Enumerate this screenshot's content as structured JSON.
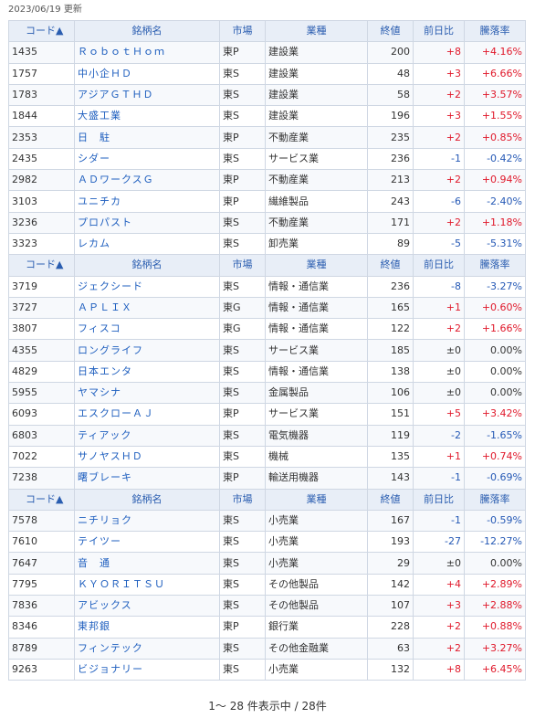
{
  "updated": "2023/06/19 更新",
  "headers": {
    "code": "コード▲",
    "name": "銘柄名",
    "market": "市場",
    "industry": "業種",
    "close": "終値",
    "change": "前日比",
    "pct": "騰落率"
  },
  "groups": [
    [
      {
        "code": "1435",
        "name": "ＲｏｂｏｔＨｏｍ",
        "market": "東P",
        "industry": "建設業",
        "close": "200",
        "change": "+8",
        "pct": "+4.16%",
        "dir": "up"
      },
      {
        "code": "1757",
        "name": "中小企ＨＤ",
        "market": "東S",
        "industry": "建設業",
        "close": "48",
        "change": "+3",
        "pct": "+6.66%",
        "dir": "up"
      },
      {
        "code": "1783",
        "name": "アジアＧＴＨＤ",
        "market": "東S",
        "industry": "建設業",
        "close": "58",
        "change": "+2",
        "pct": "+3.57%",
        "dir": "up"
      },
      {
        "code": "1844",
        "name": "大盛工業",
        "market": "東S",
        "industry": "建設業",
        "close": "196",
        "change": "+3",
        "pct": "+1.55%",
        "dir": "up"
      },
      {
        "code": "2353",
        "name": "日　駐",
        "market": "東P",
        "industry": "不動産業",
        "close": "235",
        "change": "+2",
        "pct": "+0.85%",
        "dir": "up"
      },
      {
        "code": "2435",
        "name": "シダー",
        "market": "東S",
        "industry": "サービス業",
        "close": "236",
        "change": "-1",
        "pct": "-0.42%",
        "dir": "down"
      },
      {
        "code": "2982",
        "name": "ＡＤワークスＧ",
        "market": "東P",
        "industry": "不動産業",
        "close": "213",
        "change": "+2",
        "pct": "+0.94%",
        "dir": "up"
      },
      {
        "code": "3103",
        "name": "ユニチカ",
        "market": "東P",
        "industry": "繊維製品",
        "close": "243",
        "change": "-6",
        "pct": "-2.40%",
        "dir": "down"
      },
      {
        "code": "3236",
        "name": "プロパスト",
        "market": "東S",
        "industry": "不動産業",
        "close": "171",
        "change": "+2",
        "pct": "+1.18%",
        "dir": "up"
      },
      {
        "code": "3323",
        "name": "レカム",
        "market": "東S",
        "industry": "卸売業",
        "close": "89",
        "change": "-5",
        "pct": "-5.31%",
        "dir": "down"
      }
    ],
    [
      {
        "code": "3719",
        "name": "ジェクシード",
        "market": "東S",
        "industry": "情報・通信業",
        "close": "236",
        "change": "-8",
        "pct": "-3.27%",
        "dir": "down"
      },
      {
        "code": "3727",
        "name": "ＡＰＬＩＸ",
        "market": "東G",
        "industry": "情報・通信業",
        "close": "165",
        "change": "+1",
        "pct": "+0.60%",
        "dir": "up"
      },
      {
        "code": "3807",
        "name": "フィスコ",
        "market": "東G",
        "industry": "情報・通信業",
        "close": "122",
        "change": "+2",
        "pct": "+1.66%",
        "dir": "up"
      },
      {
        "code": "4355",
        "name": "ロングライフ",
        "market": "東S",
        "industry": "サービス業",
        "close": "185",
        "change": "±0",
        "pct": "0.00%",
        "dir": "flat"
      },
      {
        "code": "4829",
        "name": "日本エンタ",
        "market": "東S",
        "industry": "情報・通信業",
        "close": "138",
        "change": "±0",
        "pct": "0.00%",
        "dir": "flat"
      },
      {
        "code": "5955",
        "name": "ヤマシナ",
        "market": "東S",
        "industry": "金属製品",
        "close": "106",
        "change": "±0",
        "pct": "0.00%",
        "dir": "flat"
      },
      {
        "code": "6093",
        "name": "エスクローＡＪ",
        "market": "東P",
        "industry": "サービス業",
        "close": "151",
        "change": "+5",
        "pct": "+3.42%",
        "dir": "up"
      },
      {
        "code": "6803",
        "name": "ティアック",
        "market": "東S",
        "industry": "電気機器",
        "close": "119",
        "change": "-2",
        "pct": "-1.65%",
        "dir": "down"
      },
      {
        "code": "7022",
        "name": "サノヤスＨＤ",
        "market": "東S",
        "industry": "機械",
        "close": "135",
        "change": "+1",
        "pct": "+0.74%",
        "dir": "up"
      },
      {
        "code": "7238",
        "name": "曙ブレーキ",
        "market": "東P",
        "industry": "輸送用機器",
        "close": "143",
        "change": "-1",
        "pct": "-0.69%",
        "dir": "down"
      }
    ],
    [
      {
        "code": "7578",
        "name": "ニチリョク",
        "market": "東S",
        "industry": "小売業",
        "close": "167",
        "change": "-1",
        "pct": "-0.59%",
        "dir": "down"
      },
      {
        "code": "7610",
        "name": "テイツー",
        "market": "東S",
        "industry": "小売業",
        "close": "193",
        "change": "-27",
        "pct": "-12.27%",
        "dir": "down"
      },
      {
        "code": "7647",
        "name": "音　通",
        "market": "東S",
        "industry": "小売業",
        "close": "29",
        "change": "±0",
        "pct": "0.00%",
        "dir": "flat"
      },
      {
        "code": "7795",
        "name": "ＫＹＯＲＩＴＳＵ",
        "market": "東S",
        "industry": "その他製品",
        "close": "142",
        "change": "+4",
        "pct": "+2.89%",
        "dir": "up"
      },
      {
        "code": "7836",
        "name": "アビックス",
        "market": "東S",
        "industry": "その他製品",
        "close": "107",
        "change": "+3",
        "pct": "+2.88%",
        "dir": "up"
      },
      {
        "code": "8346",
        "name": "東邦銀",
        "market": "東P",
        "industry": "銀行業",
        "close": "228",
        "change": "+2",
        "pct": "+0.88%",
        "dir": "up"
      },
      {
        "code": "8789",
        "name": "フィンテック",
        "market": "東S",
        "industry": "その他金融業",
        "close": "63",
        "change": "+2",
        "pct": "+3.27%",
        "dir": "up"
      },
      {
        "code": "9263",
        "name": "ビジョナリー",
        "market": "東S",
        "industry": "小売業",
        "close": "132",
        "change": "+8",
        "pct": "+6.45%",
        "dir": "up"
      }
    ]
  ],
  "pager": "1～ 28 件表示中 / 28件",
  "colors": {
    "up": "#e0182a",
    "down": "#2458b5",
    "header_bg": "#e8eef7",
    "link": "#1f5fbf"
  }
}
